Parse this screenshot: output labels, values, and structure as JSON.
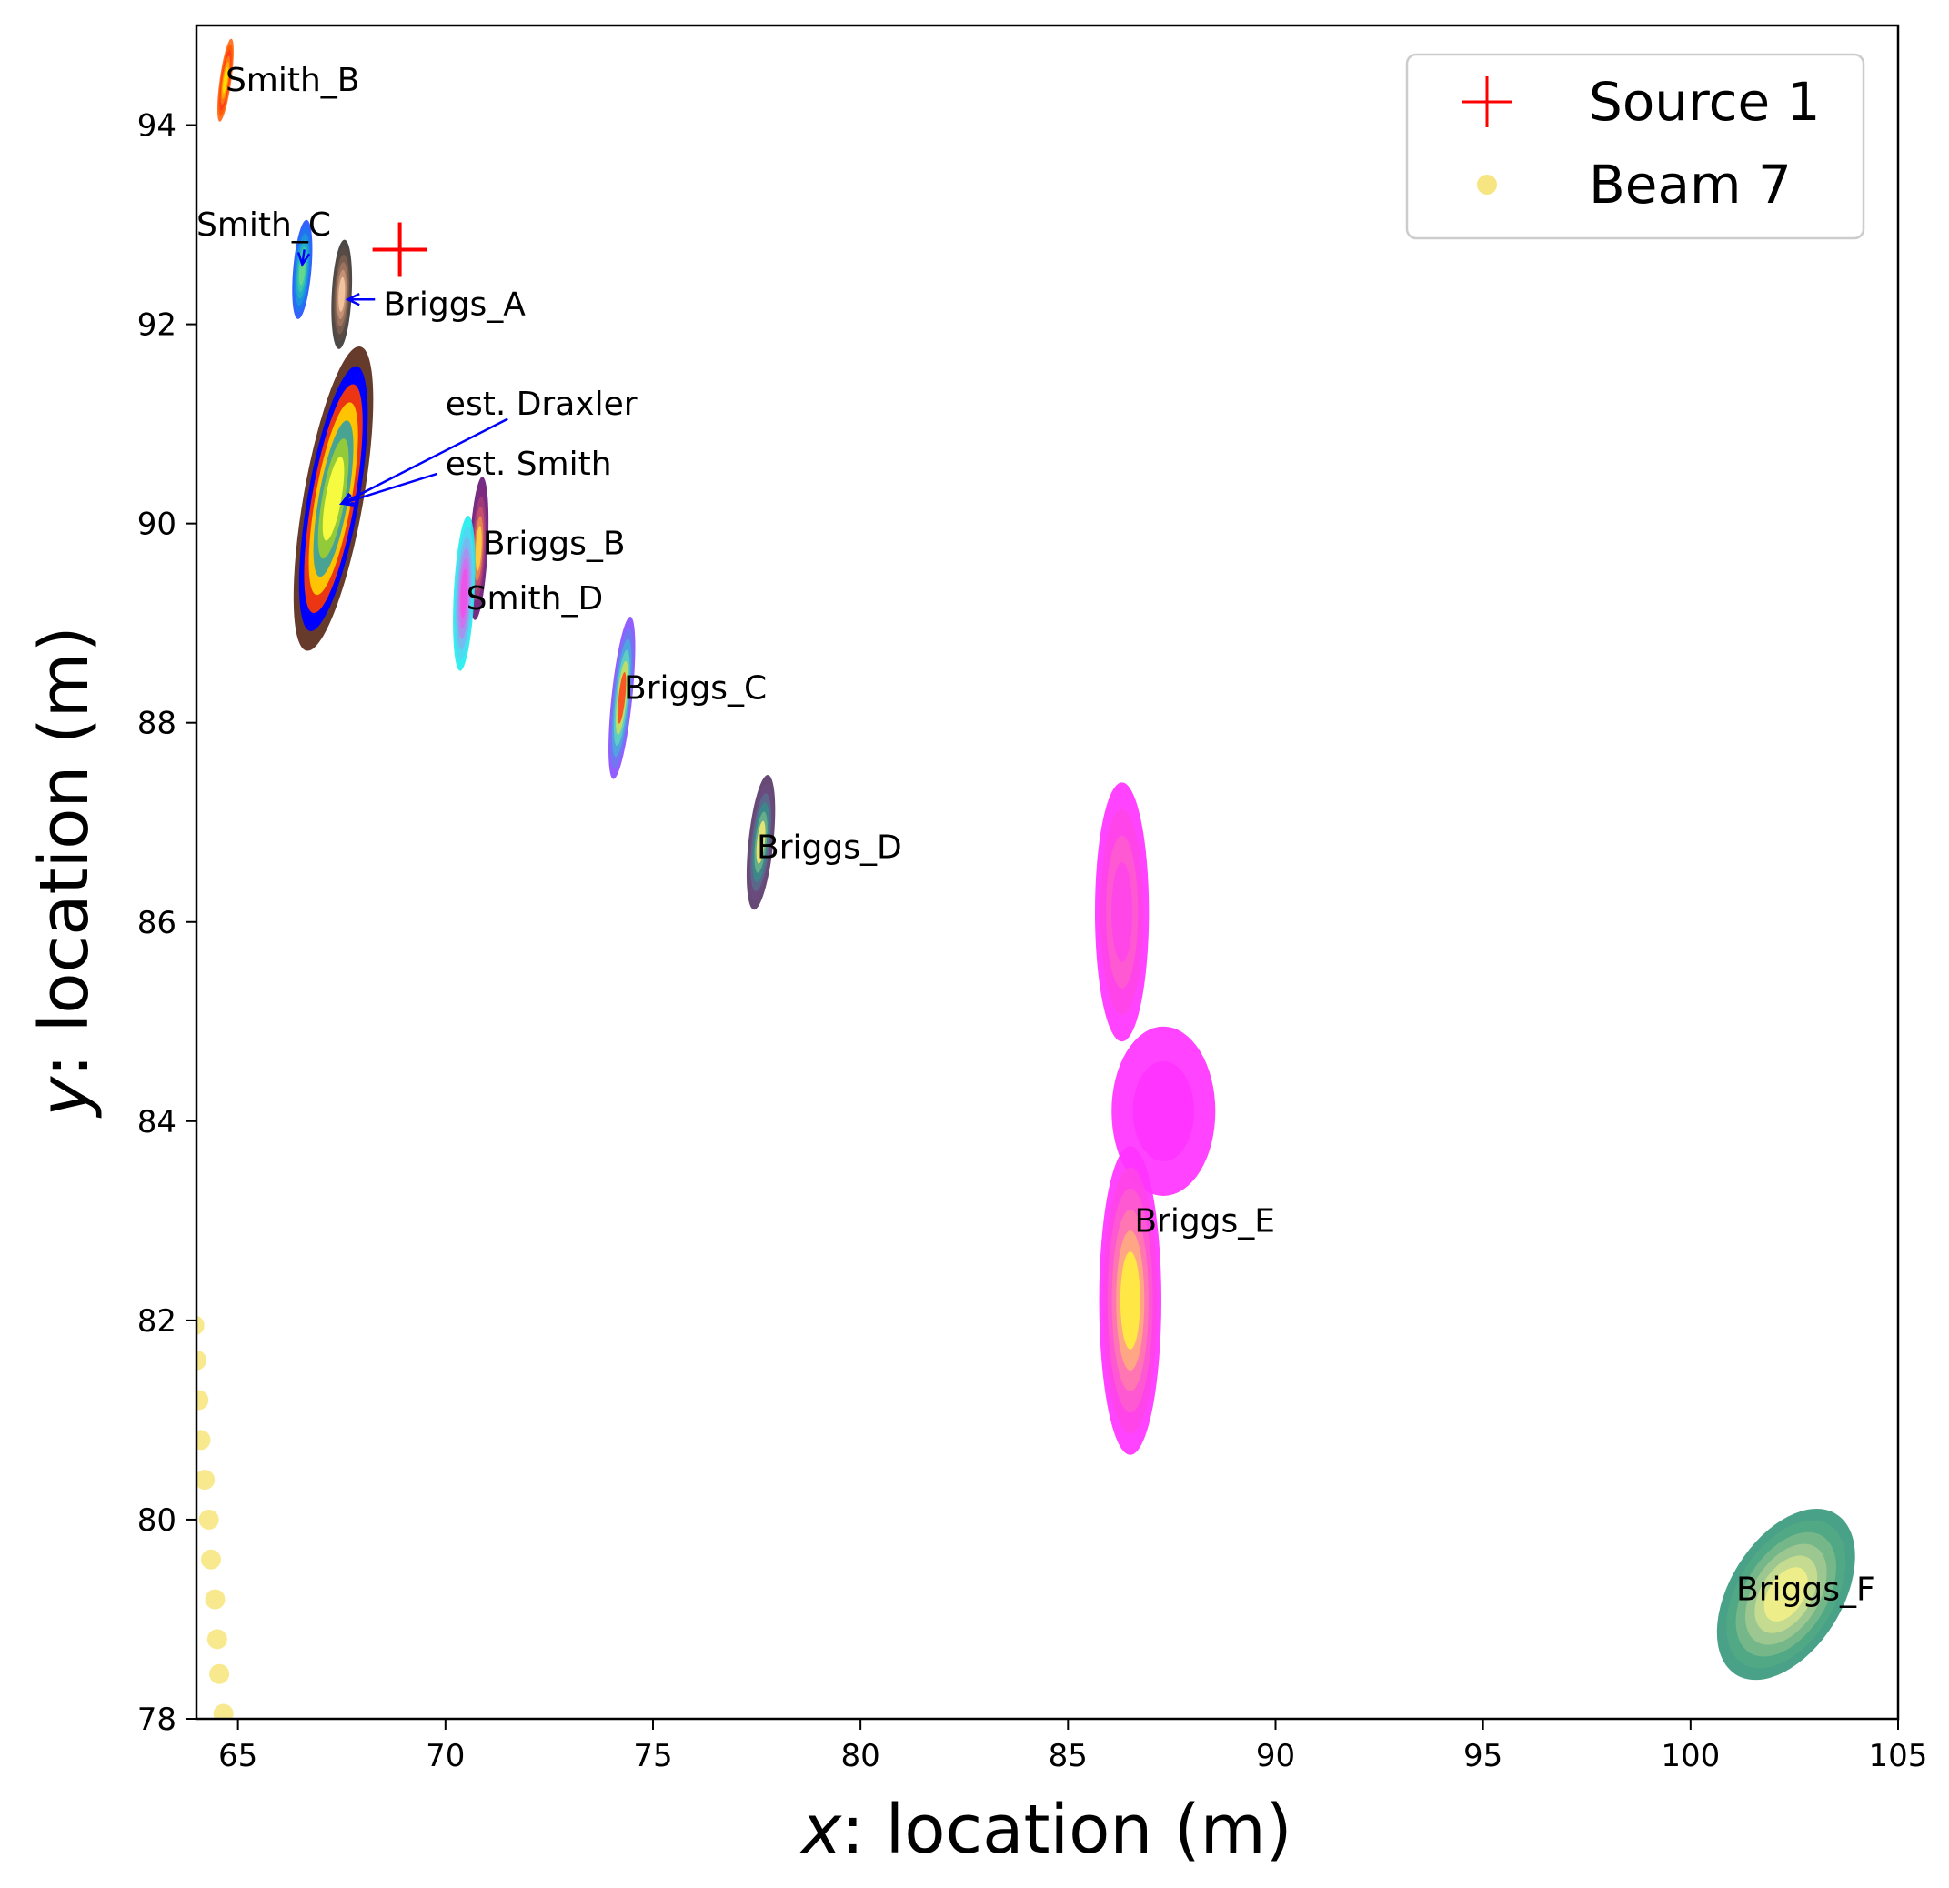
{
  "chart_data": {
    "type": "scatter",
    "xlabel": {
      "var": "x",
      "rest": ": location (m)"
    },
    "ylabel": {
      "var": "y",
      "rest": ": location (m)"
    },
    "xlim": [
      64,
      105
    ],
    "ylim": [
      78,
      95
    ],
    "xticks": [
      65,
      70,
      75,
      80,
      85,
      90,
      95,
      100,
      105
    ],
    "yticks": [
      78,
      80,
      82,
      84,
      86,
      88,
      90,
      92,
      94
    ],
    "grid": false,
    "legend": {
      "placement": "top-right",
      "entries": [
        {
          "name": "Source 1",
          "marker": "plus",
          "color": "#ff0000"
        },
        {
          "name": "Beam 7",
          "marker": "circle",
          "color": "#f5e16a"
        }
      ]
    },
    "source_points": [
      {
        "name": "Source 1",
        "x": 68.9,
        "y": 92.75,
        "color": "#ff0000"
      }
    ],
    "beam_points": {
      "name": "Beam 7",
      "color": "#f5e16a",
      "x": [
        63.95,
        64.0,
        64.05,
        64.1,
        64.2,
        64.3,
        64.35,
        64.45,
        64.5,
        64.55,
        64.65
      ],
      "y": [
        81.95,
        81.6,
        81.2,
        80.8,
        80.4,
        80.0,
        79.6,
        79.2,
        78.8,
        78.45,
        78.05
      ]
    },
    "density_regions": [
      {
        "label": "Smith_B",
        "cx": 64.7,
        "cy": 94.45,
        "sx": 0.14,
        "sy": 0.42,
        "tilt": 8,
        "colors": [
          "#ff6a1a",
          "#ff5a00",
          "#ff3c1e",
          "#ff7a10",
          "#ffb000",
          "#ffe000"
        ],
        "label_x": 64.7,
        "label_y": 94.45
      },
      {
        "label": "Smith_C",
        "cx": 66.55,
        "cy": 92.55,
        "sx": 0.22,
        "sy": 0.5,
        "tilt": 5,
        "colors": [
          "#2255ff",
          "#1f75ee",
          "#1d95dd",
          "#24b0c4",
          "#3ccaa8",
          "#6ad98b"
        ],
        "label_x": 64.0,
        "label_y": 93.0
      },
      {
        "label": "Briggs_A",
        "cx": 67.5,
        "cy": 92.3,
        "sx": 0.24,
        "sy": 0.55,
        "tilt": 3,
        "colors": [
          "#3d3a3a",
          "#5a4c44",
          "#7a6050",
          "#a07560",
          "#c89478",
          "#f2c8a0"
        ],
        "label_x": 68.5,
        "label_y": 92.2
      },
      {
        "label": "est. Draxler",
        "cx": 67.3,
        "cy": 90.25,
        "sx": 0.72,
        "sy": 1.55,
        "tilt": 10,
        "colors": [
          "#5a2a1a",
          "#0000ff",
          "#ff2200",
          "#ffb300",
          "#2e8b57",
          "#ffff00"
        ],
        "label_x": 70.0,
        "label_y": 91.2
      },
      {
        "label": "est. Smith",
        "cx": 67.3,
        "cy": 90.25,
        "sx": 0.6,
        "sy": 1.35,
        "tilt": 10,
        "colors": [
          "#0000ff",
          "#ff3b00",
          "#ffd000",
          "#3aa0a0",
          "#9acd32",
          "#ffff40"
        ],
        "label_x": 70.0,
        "label_y": 90.6
      },
      {
        "label": "Briggs_B",
        "cx": 70.8,
        "cy": 89.75,
        "sx": 0.22,
        "sy": 0.72,
        "tilt": 3,
        "colors": [
          "#6a1a7a",
          "#7e2a80",
          "#a03c7a",
          "#c8506a",
          "#e68a50",
          "#ffd040"
        ],
        "label_x": 70.9,
        "label_y": 89.8
      },
      {
        "label": "Smith_D",
        "cx": 70.45,
        "cy": 89.3,
        "sx": 0.25,
        "sy": 0.78,
        "tilt": 3,
        "colors": [
          "#22eeee",
          "#50d8f0",
          "#7ab8f0",
          "#a890f0",
          "#d070f0",
          "#f050e8"
        ],
        "label_x": 70.5,
        "label_y": 89.25
      },
      {
        "label": "Briggs_C",
        "cx": 74.25,
        "cy": 88.25,
        "sx": 0.25,
        "sy": 0.82,
        "tilt": 6,
        "colors": [
          "#8a50ff",
          "#6c7af0",
          "#4ea6e0",
          "#62d0c0",
          "#c8e060",
          "#ff4a20"
        ],
        "label_x": 74.3,
        "label_y": 88.35
      },
      {
        "label": "Briggs_D",
        "cx": 77.6,
        "cy": 86.8,
        "sx": 0.3,
        "sy": 0.68,
        "tilt": 6,
        "colors": [
          "#5a3a6a",
          "#6a4c7e",
          "#5a6a8c",
          "#3a8a8a",
          "#6ab08a",
          "#f0e870"
        ],
        "label_x": 77.5,
        "label_y": 86.75
      },
      {
        "label": "Briggs_E",
        "cx": 86.5,
        "cy": 82.2,
        "sx": 0.75,
        "sy": 1.55,
        "tilt": 0,
        "colors": [
          "#ff33ff",
          "#ff44e8",
          "#ff5ad0",
          "#ff78b0",
          "#ffaa80",
          "#ffee40"
        ],
        "upper_cx": 86.3,
        "upper_cy": 86.1,
        "upper_sx": 0.65,
        "upper_sy": 1.3,
        "mid_cx": 87.3,
        "mid_cy": 84.1,
        "mid_sx": 1.25,
        "mid_sy": 0.85,
        "label_x": 86.6,
        "label_y": 83.0
      },
      {
        "label": "Briggs_F",
        "cx": 102.3,
        "cy": 79.25,
        "sx": 1.35,
        "sy": 0.95,
        "tilt": 32,
        "colors": [
          "#3a9a7e",
          "#52a884",
          "#78b88a",
          "#a0c890",
          "#c8dc90",
          "#f0f08a"
        ],
        "label_x": 101.1,
        "label_y": 79.3
      }
    ],
    "annotation_arrows": [
      {
        "text_of": "Smith_C",
        "from": [
          66.6,
          92.75
        ],
        "to": [
          66.55,
          92.6
        ]
      },
      {
        "text_of": "Briggs_A",
        "from": [
          68.3,
          92.25
        ],
        "to": [
          67.65,
          92.25
        ]
      },
      {
        "text_of": "est. Draxler",
        "from": [
          71.5,
          91.05
        ],
        "to": [
          67.5,
          90.2
        ]
      },
      {
        "text_of": "est. Smith",
        "from": [
          69.8,
          90.5
        ],
        "to": [
          67.5,
          90.2
        ]
      }
    ]
  }
}
